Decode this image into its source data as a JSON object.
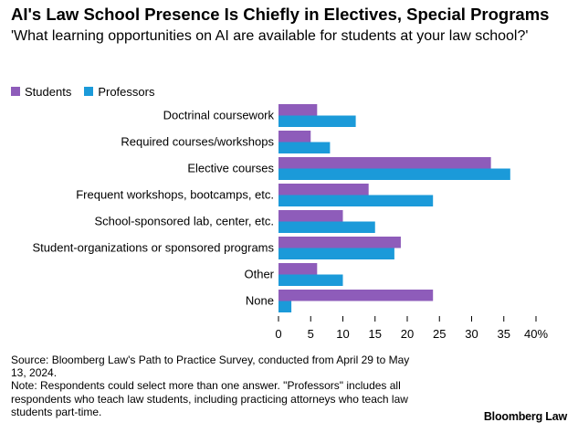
{
  "title": "AI's Law School Presence Is Chiefly in Electives, Special Programs",
  "subtitle": "'What learning opportunities on AI are available for students at your law school?'",
  "colors": {
    "students": "#8e5cba",
    "professors": "#1b9ad9"
  },
  "chart_data": {
    "type": "bar",
    "orientation": "horizontal",
    "categories": [
      "Doctrinal coursework",
      "Required courses/workshops",
      "Elective courses",
      "Frequent workshops, bootcamps, etc.",
      "School-sponsored lab, center, etc.",
      "Student-organizations or sponsored programs",
      "Other",
      "None"
    ],
    "series": [
      {
        "name": "Students",
        "values": [
          6,
          5,
          33,
          14,
          10,
          19,
          6,
          24
        ]
      },
      {
        "name": "Professors",
        "values": [
          12,
          8,
          36,
          24,
          15,
          18,
          10,
          2
        ]
      }
    ],
    "xlim": [
      0,
      40
    ],
    "xticks": [
      "0",
      "5",
      "10",
      "15",
      "20",
      "25",
      "30",
      "35",
      "40%"
    ],
    "xtick_values": [
      0,
      5,
      10,
      15,
      20,
      25,
      30,
      35,
      40
    ],
    "legend_position": "top-left",
    "grid": false
  },
  "footer": {
    "source": "Source: Bloomberg Law's Path to Practice Survey, conducted from April 29 to May 13, 2024.",
    "note": "Note: Respondents could select more than one answer. \"Professors\" includes all respondents who teach law students, including practicing attorneys who teach law students part-time."
  },
  "brand": "Bloomberg Law"
}
